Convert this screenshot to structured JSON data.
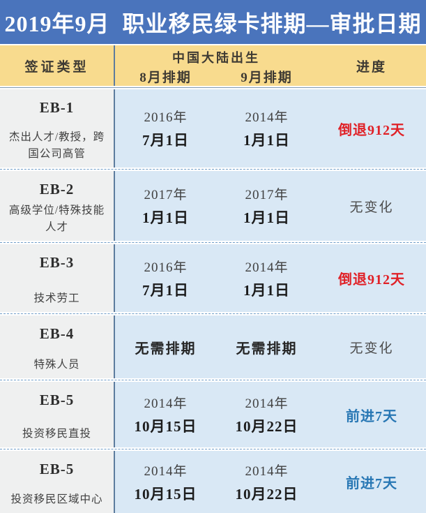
{
  "banner": {
    "title": "2019年9月  职业移民绿卡排期—审批日期"
  },
  "header": {
    "col_visa_type": "签证类型",
    "group_label": "中国大陆出生",
    "col_aug": "8月排期",
    "col_sep": "9月排期",
    "col_progress": "进度"
  },
  "rows": [
    {
      "category": "EB-1",
      "subtitle": "杰出人才/教授，跨国公司高管",
      "aug_year": "2016年",
      "aug_day": "7月1日",
      "sep_year": "2014年",
      "sep_day": "1月1日",
      "progress": "倒退912天",
      "progress_type": "back"
    },
    {
      "category": "EB-2",
      "subtitle": "高级学位/特殊技能人才",
      "aug_year": "2017年",
      "aug_day": "1月1日",
      "sep_year": "2017年",
      "sep_day": "1月1日",
      "progress": "无变化",
      "progress_type": "none"
    },
    {
      "category": "EB-3",
      "subtitle": "技术劳工",
      "aug_year": "2016年",
      "aug_day": "7月1日",
      "sep_year": "2014年",
      "sep_day": "1月1日",
      "progress": "倒退912天",
      "progress_type": "back"
    },
    {
      "category": "EB-4",
      "subtitle": "特殊人员",
      "aug_single": "无需排期",
      "sep_single": "无需排期",
      "progress": "无变化",
      "progress_type": "none"
    },
    {
      "category": "EB-5",
      "subtitle": "投资移民直投",
      "aug_year": "2014年",
      "aug_day": "10月15日",
      "sep_year": "2014年",
      "sep_day": "10月22日",
      "progress": "前进7天",
      "progress_type": "forward"
    },
    {
      "category": "EB-5",
      "subtitle": "投资移民区域中心",
      "aug_year": "2014年",
      "aug_day": "10月15日",
      "sep_year": "2014年",
      "sep_day": "10月22日",
      "progress": "前进7天",
      "progress_type": "forward"
    }
  ],
  "colors": {
    "banner_bg": "#4a74bc",
    "header_bg": "#f8db8e",
    "cell_bg": "#d9e8f5",
    "category_bg": "#eff0f0",
    "divider": "#5d7c9e",
    "dashed_line": "#6f9dc8",
    "progress_back": "#e02127",
    "progress_forward": "#2877b4",
    "progress_none": "#4d4d4d"
  },
  "chart_data": {
    "type": "table",
    "title": "2019年9月 职业移民绿卡排期—审批日期",
    "column_group": {
      "label": "中国大陆出生",
      "spans": [
        "8月排期",
        "9月排期"
      ]
    },
    "columns": [
      "签证类型",
      "8月排期",
      "9月排期",
      "进度"
    ],
    "rows": [
      [
        "EB-1（杰出人才/教授，跨国公司高管）",
        "2016年7月1日",
        "2014年1月1日",
        "倒退912天"
      ],
      [
        "EB-2（高级学位/特殊技能人才）",
        "2017年1月1日",
        "2017年1月1日",
        "无变化"
      ],
      [
        "EB-3（技术劳工）",
        "2016年7月1日",
        "2014年1月1日",
        "倒退912天"
      ],
      [
        "EB-4（特殊人员）",
        "无需排期",
        "无需排期",
        "无变化"
      ],
      [
        "EB-5（投资移民直投）",
        "2014年10月15日",
        "2014年10月22日",
        "前进7天"
      ],
      [
        "EB-5（投资移民区域中心）",
        "2014年10月15日",
        "2014年10月22日",
        "前进7天"
      ]
    ]
  }
}
